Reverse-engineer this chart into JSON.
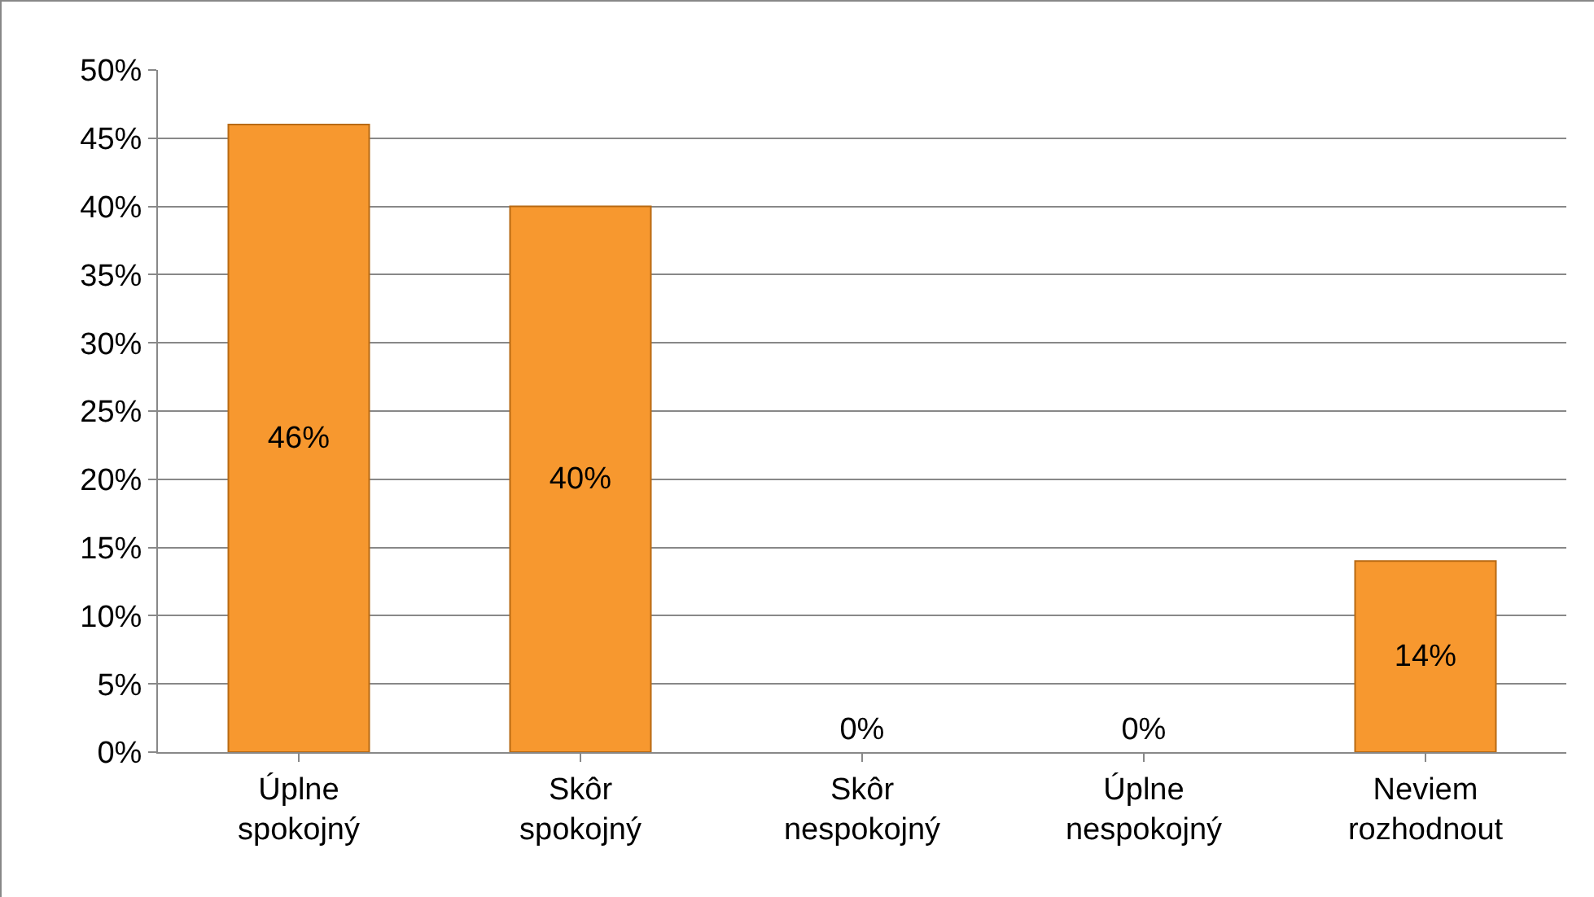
{
  "chart_data": {
    "type": "bar",
    "categories": [
      "Úplne spokojný",
      "Skôr spokojný",
      "Skôr nespokojný",
      "Úplne nespokojný",
      "Neviem rozhodnout"
    ],
    "values": [
      46,
      40,
      0,
      0,
      14
    ],
    "color": "#f7982f",
    "data_labels": true,
    "value_labels": [
      "46%",
      "40%",
      "0%",
      "0%",
      "14%"
    ],
    "ylim": [
      0,
      50
    ],
    "yticks": [
      {
        "value": 0,
        "label": "0%"
      },
      {
        "value": 5,
        "label": "5%"
      },
      {
        "value": 10,
        "label": "10%"
      },
      {
        "value": 15,
        "label": "15%"
      },
      {
        "value": 20,
        "label": "20%"
      },
      {
        "value": 25,
        "label": "25%"
      },
      {
        "value": 30,
        "label": "30%"
      },
      {
        "value": 35,
        "label": "35%"
      },
      {
        "value": 40,
        "label": "40%"
      },
      {
        "value": 45,
        "label": "45%"
      },
      {
        "value": 50,
        "label": "50%"
      }
    ],
    "grid": "y"
  }
}
